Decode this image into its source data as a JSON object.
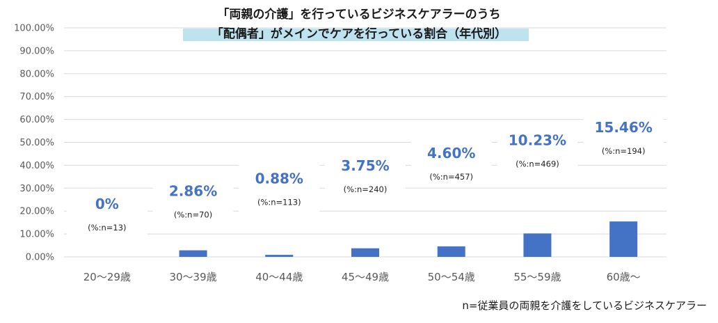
{
  "chart_data": {
    "type": "bar",
    "title_line1": "「両親の介護」を行っているビジネスケアラーのうち",
    "title_line2": "「配偶者」がメインでケアを行っている割合（年代別）",
    "categories": [
      "20～29歳",
      "30～39歳",
      "40～44歳",
      "45～49歳",
      "50～54歳",
      "55～59歳",
      "60歳～"
    ],
    "values": [
      0,
      2.86,
      0.88,
      3.75,
      4.6,
      10.23,
      15.46
    ],
    "value_labels": [
      "0%",
      "2.86%",
      "0.88%",
      "3.75%",
      "4.60%",
      "10.23%",
      "15.46%"
    ],
    "n_labels": [
      "(%:n=13)",
      "(%:n=70)",
      "(%:n=113)",
      "(%:n=240)",
      "(%:n=457)",
      "(%:n=469)",
      "(%:n=194)"
    ],
    "y_ticks": [
      "0.00%",
      "10.00%",
      "20.00%",
      "30.00%",
      "40.00%",
      "50.00%",
      "60.00%",
      "70.00%",
      "80.00%",
      "90.00%",
      "100.00%"
    ],
    "ylim": [
      0,
      100
    ],
    "grid": true,
    "footnote": "n=従業員の両親を介護をしているビジネスケアラー",
    "colors": {
      "bar": "#4472C4",
      "label": "#4472C4",
      "title_highlight": "#BDE3EF",
      "grid": "#D9D9D9"
    }
  }
}
